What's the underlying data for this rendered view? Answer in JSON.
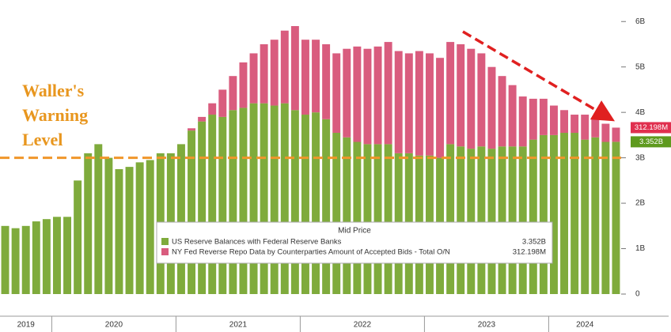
{
  "chart_data": {
    "type": "stacked_bar",
    "categories": [
      "2019",
      null,
      null,
      null,
      null,
      "2020",
      null,
      null,
      null,
      null,
      null,
      null,
      null,
      null,
      null,
      null,
      null,
      "2021",
      null,
      null,
      null,
      null,
      null,
      null,
      null,
      null,
      null,
      null,
      null,
      "2022",
      null,
      null,
      null,
      null,
      null,
      null,
      null,
      null,
      null,
      null,
      null,
      "2023",
      null,
      null,
      null,
      null,
      null,
      null,
      null,
      null,
      null,
      null,
      null,
      "2024",
      null,
      null,
      null,
      null,
      null,
      null
    ],
    "series": [
      {
        "name": "US Reserve Balances with Federal Reserve Banks",
        "color": "#7fab3c",
        "tag_color": "#5e9a1e",
        "values": [
          1.5,
          1.45,
          1.5,
          1.6,
          1.65,
          1.7,
          1.7,
          2.5,
          3.1,
          3.3,
          3.0,
          2.75,
          2.8,
          2.9,
          2.95,
          3.1,
          3.1,
          3.3,
          3.6,
          3.8,
          3.95,
          3.9,
          4.05,
          4.1,
          4.2,
          4.2,
          4.15,
          4.2,
          4.05,
          3.95,
          4.0,
          3.85,
          3.55,
          3.45,
          3.35,
          3.3,
          3.3,
          3.3,
          3.1,
          3.1,
          3.05,
          3.05,
          3.0,
          3.3,
          3.25,
          3.2,
          3.25,
          3.2,
          3.25,
          3.25,
          3.25,
          3.4,
          3.5,
          3.5,
          3.55,
          3.55,
          3.4,
          3.45,
          3.35,
          3.352
        ],
        "value_labels": [
          null,
          null,
          null,
          null,
          null,
          null,
          null,
          null,
          null,
          null,
          null,
          null,
          null,
          null,
          null,
          null,
          null,
          null,
          null,
          null,
          null,
          null,
          null,
          null,
          null,
          null,
          null,
          null,
          null,
          null,
          null,
          null,
          null,
          null,
          null,
          null,
          null,
          null,
          null,
          null,
          null,
          null,
          null,
          null,
          null,
          null,
          null,
          null,
          null,
          null,
          null,
          null,
          null,
          null,
          null,
          null,
          null,
          null,
          null,
          "3.352B"
        ]
      },
      {
        "name": "NY Fed Reverse Repo Data by Counterparties Amount of Accepted Bids - Total O/N",
        "color": "#d95c7e",
        "tag_color": "#e0304f",
        "values": [
          0,
          0,
          0,
          0,
          0,
          0,
          0,
          0,
          0,
          0,
          0,
          0,
          0,
          0,
          0,
          0,
          0,
          0,
          0.05,
          0.1,
          0.25,
          0.6,
          0.75,
          1.0,
          1.1,
          1.3,
          1.45,
          1.6,
          1.85,
          1.65,
          1.6,
          1.65,
          1.75,
          1.95,
          2.1,
          2.1,
          2.15,
          2.25,
          2.25,
          2.2,
          2.3,
          2.25,
          2.2,
          2.25,
          2.25,
          2.2,
          2.05,
          1.8,
          1.55,
          1.35,
          1.1,
          0.9,
          0.8,
          0.65,
          0.5,
          0.4,
          0.55,
          0.4,
          0.4,
          0.312198
        ],
        "value_labels": [
          null,
          null,
          null,
          null,
          null,
          null,
          null,
          null,
          null,
          null,
          null,
          null,
          null,
          null,
          null,
          null,
          null,
          null,
          null,
          null,
          null,
          null,
          null,
          null,
          null,
          null,
          null,
          null,
          null,
          null,
          null,
          null,
          null,
          null,
          null,
          null,
          null,
          null,
          null,
          null,
          null,
          null,
          null,
          null,
          null,
          null,
          null,
          null,
          null,
          null,
          null,
          null,
          null,
          null,
          null,
          null,
          null,
          null,
          null,
          "312.198M"
        ]
      }
    ],
    "ylim": [
      0,
      6.3
    ],
    "yticks": [
      {
        "value": 0,
        "label": "0"
      },
      {
        "value": 1,
        "label": "1B"
      },
      {
        "value": 2,
        "label": "2B"
      },
      {
        "value": 3,
        "label": "3B"
      },
      {
        "value": 4,
        "label": "4B"
      },
      {
        "value": 5,
        "label": "5B"
      },
      {
        "value": 6,
        "label": "6B"
      }
    ],
    "legend_title": "Mid Price",
    "threshold": 3,
    "threshold_color": "#f0962a",
    "annotation": [
      "Waller's",
      "Warning",
      "Level"
    ],
    "grid": false
  }
}
